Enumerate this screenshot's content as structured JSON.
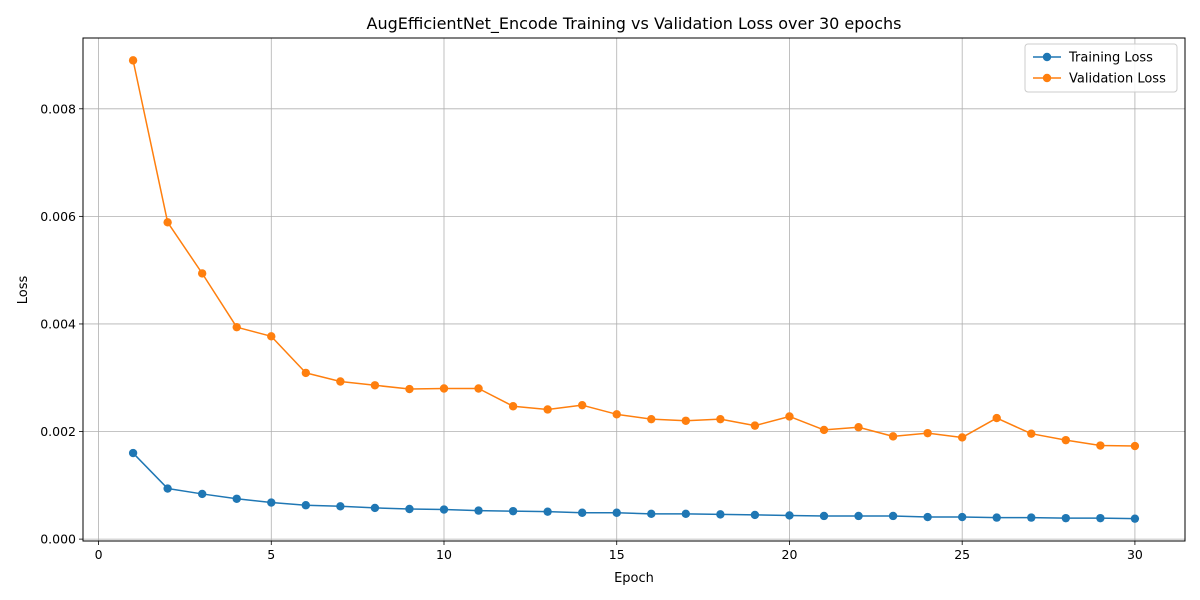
{
  "chart_data": {
    "type": "line",
    "title": "AugEfficientNet_Encode Training vs Validation Loss over 30 epochs",
    "xlabel": "Epoch",
    "ylabel": "Loss",
    "xlim": [
      -0.45,
      31.45
    ],
    "ylim": [
      -3.5e-05,
      0.009316
    ],
    "x_ticks": [
      0,
      5,
      10,
      15,
      20,
      25,
      30
    ],
    "y_ticks": [
      0.0,
      0.002,
      0.004,
      0.006,
      0.008
    ],
    "y_tick_labels": [
      "0.000",
      "0.002",
      "0.004",
      "0.006",
      "0.008"
    ],
    "grid": true,
    "legend_position": "top-right",
    "x": [
      1,
      2,
      3,
      4,
      5,
      6,
      7,
      8,
      9,
      10,
      11,
      12,
      13,
      14,
      15,
      16,
      17,
      18,
      19,
      20,
      21,
      22,
      23,
      24,
      25,
      26,
      27,
      28,
      29,
      30
    ],
    "series": [
      {
        "name": "Training Loss",
        "color": "#1f77b4",
        "values": [
          0.0016,
          0.00094,
          0.00084,
          0.00075,
          0.00068,
          0.00063,
          0.00061,
          0.00058,
          0.00056,
          0.00055,
          0.00053,
          0.00052,
          0.00051,
          0.00049,
          0.00049,
          0.00047,
          0.00047,
          0.00046,
          0.00045,
          0.00044,
          0.00043,
          0.00043,
          0.00043,
          0.00041,
          0.00041,
          0.0004,
          0.0004,
          0.00039,
          0.00039,
          0.00038
        ]
      },
      {
        "name": "Validation Loss",
        "color": "#ff7f0e",
        "values": [
          0.0089,
          0.00589,
          0.00494,
          0.00394,
          0.00377,
          0.00309,
          0.00293,
          0.00286,
          0.00279,
          0.0028,
          0.0028,
          0.00247,
          0.00241,
          0.00249,
          0.00232,
          0.00223,
          0.0022,
          0.00223,
          0.00211,
          0.00228,
          0.00203,
          0.00208,
          0.00191,
          0.00197,
          0.00189,
          0.00225,
          0.00196,
          0.00184,
          0.00174,
          0.00173
        ]
      }
    ]
  }
}
